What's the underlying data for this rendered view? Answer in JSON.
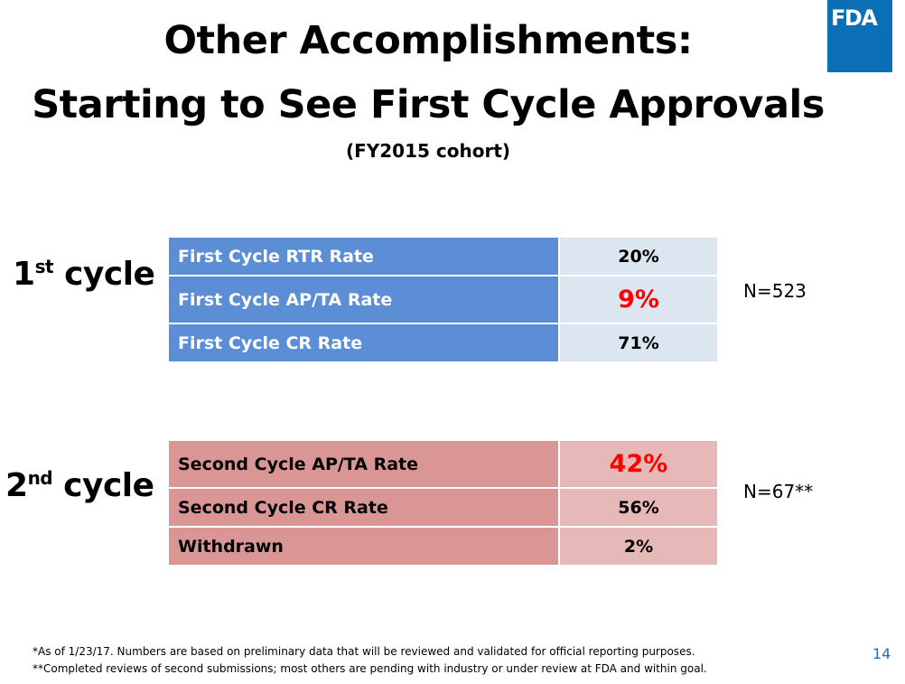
{
  "title_line1": "Other Accomplishments:",
  "title_line2": "Starting to See First Cycle Approvals",
  "subtitle": "(FY2015 cohort)",
  "logo_text": "FDA",
  "colors": {
    "logo_bg": "#0b6fb5",
    "first_cycle_label_bg": "#5b8ed5",
    "first_cycle_value_bg": "#dce6f1",
    "second_cycle_label_bg": "#da9695",
    "second_cycle_value_bg": "#e6b9b8",
    "highlight_value": "#ff0000"
  },
  "first_cycle": {
    "label_ordinal": "1",
    "label_suffix": "st",
    "label_word": " cycle",
    "n": "N=523",
    "rows": [
      {
        "label": "First Cycle RTR Rate",
        "value": "20%"
      },
      {
        "label": "First Cycle AP/TA Rate",
        "value": "9%"
      },
      {
        "label": "First Cycle CR Rate",
        "value": "71%"
      }
    ]
  },
  "second_cycle": {
    "label_ordinal": "2",
    "label_suffix": "nd",
    "label_word": " cycle",
    "n": "N=67**",
    "rows": [
      {
        "label": "Second Cycle AP/TA Rate",
        "value": "42%"
      },
      {
        "label": "Second Cycle CR Rate",
        "value": "56%"
      },
      {
        "label": "Withdrawn",
        "value": "2%"
      }
    ]
  },
  "footnotes": [
    "*As of 1/23/17. Numbers are based on preliminary data that will be reviewed and validated for official reporting purposes.",
    "**Completed reviews of second submissions; most others are pending with industry or under review at FDA and within goal."
  ],
  "page_number": "14"
}
